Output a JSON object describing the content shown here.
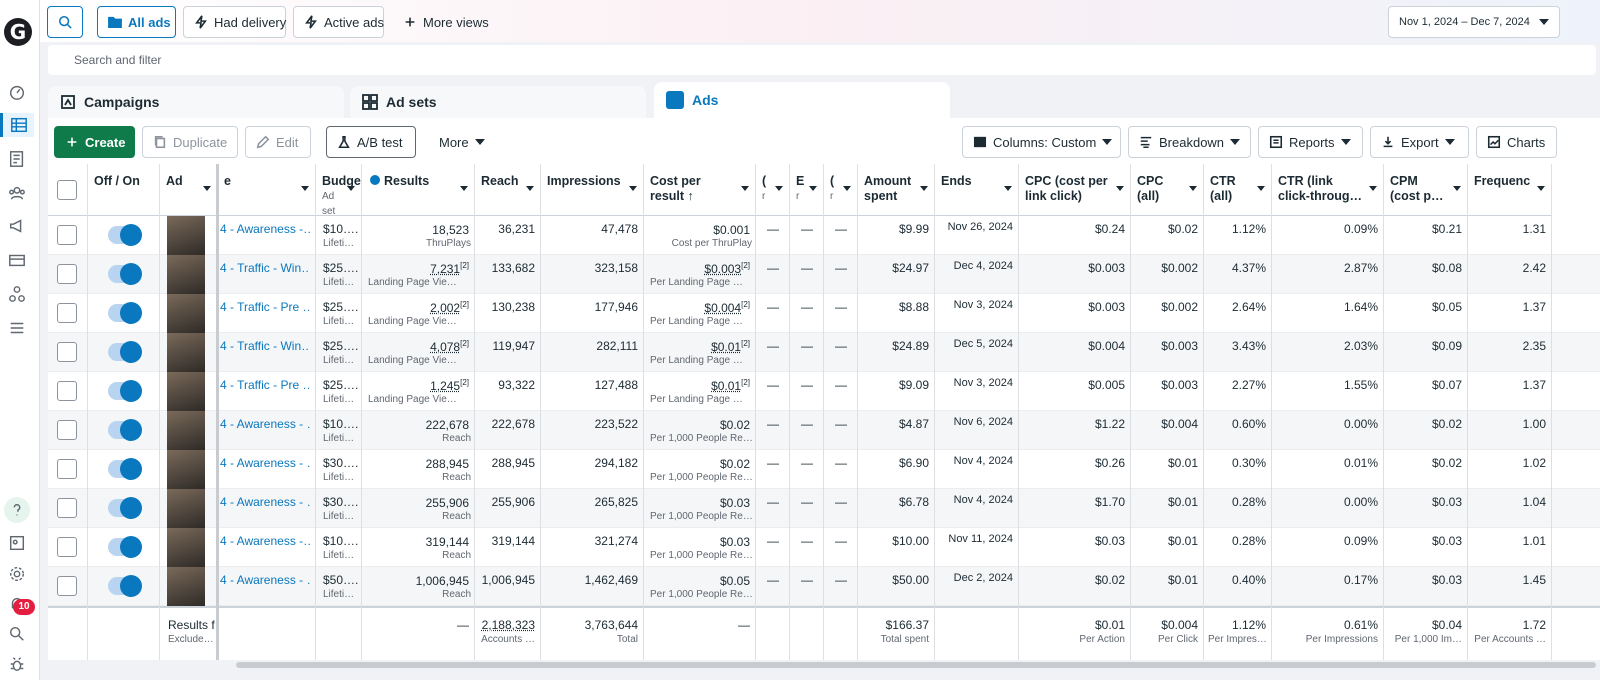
{
  "nav": {
    "logo": "G",
    "notifications": "10",
    "icons": [
      "dashboard-icon",
      "table-icon",
      "report-icon",
      "audience-icon",
      "megaphone-icon",
      "billing-icon",
      "people-icon",
      "menu-icon",
      "help-icon",
      "pages-icon",
      "settings-icon",
      "bell-icon",
      "search-icon",
      "bug-icon"
    ]
  },
  "topbar": {
    "views": [
      {
        "label": "All ads",
        "icon": "folder-icon",
        "selected": true
      },
      {
        "label": "Had delivery",
        "icon": "bolt-icon"
      },
      {
        "label": "Active ads",
        "icon": "bolt-icon"
      },
      {
        "label": "More views",
        "icon": "plus-icon"
      }
    ],
    "date_range": "Nov 1, 2024 – Dec 7, 2024",
    "search_placeholder": "Search and filter"
  },
  "tabs": [
    {
      "label": "Campaigns",
      "icon": "campaign-icon"
    },
    {
      "label": "Ad sets",
      "icon": "grid-icon"
    },
    {
      "label": "Ads",
      "icon": "ad-icon",
      "active": true
    }
  ],
  "toolbar": {
    "create": "Create",
    "duplicate": "Duplicate",
    "edit": "Edit",
    "ab_test": "A/B test",
    "more": "More",
    "columns": "Columns: Custom",
    "breakdown": "Breakdown",
    "reports": "Reports",
    "export": "Export",
    "charts": "Charts"
  },
  "headers": {
    "toggle": "Off / On",
    "ad": "Ad",
    "name": "e",
    "budget": "Budge",
    "budget_sub": "Ad set",
    "results": "Results",
    "reach": "Reach",
    "impressions": "Impressions",
    "cost_per_result": "Cost per result ↑",
    "c1": "(",
    "c1b": "r",
    "c2": "E",
    "c2b": "r",
    "c3": "(",
    "c3b": "r",
    "amount": "Amount spent",
    "ends": "Ends",
    "cpc_link": "CPC (cost per link click)",
    "cpc_all": "CPC (all)",
    "ctr_all": "CTR (all)",
    "ctr_link": "CTR (link click-throug…",
    "cpm": "CPM (cost p…",
    "frequency": "Frequenc"
  },
  "rows": [
    {
      "name": "4 - Awareness -…",
      "budget": "$10….",
      "budget_sub": "Lifeti…",
      "results": "18,523",
      "results_sub": "ThruPlays",
      "results_flag": "",
      "reach": "36,231",
      "impressions": "47,478",
      "cpr": "$0.001",
      "cpr_sub": "Cost per ThruPlay",
      "cpr_flag": "",
      "d1": "—",
      "d2": "—",
      "d3": "—",
      "amount": "$9.99",
      "ends": "Nov 26, 2024",
      "cpc_link": "$0.24",
      "cpc_all": "$0.02",
      "ctr_all": "1.12%",
      "ctr_link": "0.09%",
      "cpm": "$0.21",
      "frequency": "1.31"
    },
    {
      "name": "4 - Traffic - Win…",
      "budget": "$25….",
      "budget_sub": "Lifeti…",
      "results": "7,231",
      "results_sub": "Landing Page Vie…",
      "results_flag": "[2]",
      "reach": "133,682",
      "impressions": "323,158",
      "cpr": "$0.003",
      "cpr_sub": "Per Landing Page …",
      "cpr_flag": "[2]",
      "d1": "—",
      "d2": "—",
      "d3": "—",
      "amount": "$24.97",
      "ends": "Dec 4, 2024",
      "cpc_link": "$0.003",
      "cpc_all": "$0.002",
      "ctr_all": "4.37%",
      "ctr_link": "2.87%",
      "cpm": "$0.08",
      "frequency": "2.42"
    },
    {
      "name": "4 - Traffic - Pre …",
      "budget": "$25….",
      "budget_sub": "Lifeti…",
      "results": "2,002",
      "results_sub": "Landing Page Vie…",
      "results_flag": "[2]",
      "reach": "130,238",
      "impressions": "177,946",
      "cpr": "$0.004",
      "cpr_sub": "Per Landing Page …",
      "cpr_flag": "[2]",
      "d1": "—",
      "d2": "—",
      "d3": "—",
      "amount": "$8.88",
      "ends": "Nov 3, 2024",
      "cpc_link": "$0.003",
      "cpc_all": "$0.002",
      "ctr_all": "2.64%",
      "ctr_link": "1.64%",
      "cpm": "$0.05",
      "frequency": "1.37"
    },
    {
      "name": "4 - Traffic - Win…",
      "budget": "$25….",
      "budget_sub": "Lifeti…",
      "results": "4,078",
      "results_sub": "Landing Page Vie…",
      "results_flag": "[2]",
      "reach": "119,947",
      "impressions": "282,111",
      "cpr": "$0.01",
      "cpr_sub": "Per Landing Page …",
      "cpr_flag": "[2]",
      "d1": "—",
      "d2": "—",
      "d3": "—",
      "amount": "$24.89",
      "ends": "Dec 5, 2024",
      "cpc_link": "$0.004",
      "cpc_all": "$0.003",
      "ctr_all": "3.43%",
      "ctr_link": "2.03%",
      "cpm": "$0.09",
      "frequency": "2.35"
    },
    {
      "name": "4 - Traffic - Pre …",
      "budget": "$25….",
      "budget_sub": "Lifeti…",
      "results": "1,245",
      "results_sub": "Landing Page Vie…",
      "results_flag": "[2]",
      "reach": "93,322",
      "impressions": "127,488",
      "cpr": "$0.01",
      "cpr_sub": "Per Landing Page …",
      "cpr_flag": "[2]",
      "d1": "—",
      "d2": "—",
      "d3": "—",
      "amount": "$9.09",
      "ends": "Nov 3, 2024",
      "cpc_link": "$0.005",
      "cpc_all": "$0.003",
      "ctr_all": "2.27%",
      "ctr_link": "1.55%",
      "cpm": "$0.07",
      "frequency": "1.37"
    },
    {
      "name": "4 - Awareness - …",
      "budget": "$10….",
      "budget_sub": "Lifeti…",
      "results": "222,678",
      "results_sub": "Reach",
      "results_flag": "",
      "reach": "222,678",
      "impressions": "223,522",
      "cpr": "$0.02",
      "cpr_sub": "Per 1,000 People Re…",
      "cpr_flag": "",
      "d1": "—",
      "d2": "—",
      "d3": "—",
      "amount": "$4.87",
      "ends": "Nov 6, 2024",
      "cpc_link": "$1.22",
      "cpc_all": "$0.004",
      "ctr_all": "0.60%",
      "ctr_link": "0.00%",
      "cpm": "$0.02",
      "frequency": "1.00"
    },
    {
      "name": "4 - Awareness - …",
      "budget": "$30….",
      "budget_sub": "Lifeti…",
      "results": "288,945",
      "results_sub": "Reach",
      "results_flag": "",
      "reach": "288,945",
      "impressions": "294,182",
      "cpr": "$0.02",
      "cpr_sub": "Per 1,000 People Re…",
      "cpr_flag": "",
      "d1": "—",
      "d2": "—",
      "d3": "—",
      "amount": "$6.90",
      "ends": "Nov 4, 2024",
      "cpc_link": "$0.26",
      "cpc_all": "$0.01",
      "ctr_all": "0.30%",
      "ctr_link": "0.01%",
      "cpm": "$0.02",
      "frequency": "1.02"
    },
    {
      "name": "4 - Awareness - …",
      "budget": "$30….",
      "budget_sub": "Lifeti…",
      "results": "255,906",
      "results_sub": "Reach",
      "results_flag": "",
      "reach": "255,906",
      "impressions": "265,825",
      "cpr": "$0.03",
      "cpr_sub": "Per 1,000 People Re…",
      "cpr_flag": "",
      "d1": "—",
      "d2": "—",
      "d3": "—",
      "amount": "$6.78",
      "ends": "Nov 4, 2024",
      "cpc_link": "$1.70",
      "cpc_all": "$0.01",
      "ctr_all": "0.28%",
      "ctr_link": "0.00%",
      "cpm": "$0.03",
      "frequency": "1.04"
    },
    {
      "name": "4 - Awareness -…",
      "budget": "$10….",
      "budget_sub": "Lifeti…",
      "results": "319,144",
      "results_sub": "Reach",
      "results_flag": "",
      "reach": "319,144",
      "impressions": "321,274",
      "cpr": "$0.03",
      "cpr_sub": "Per 1,000 People Re…",
      "cpr_flag": "",
      "d1": "—",
      "d2": "—",
      "d3": "—",
      "amount": "$10.00",
      "ends": "Nov 11, 2024",
      "cpc_link": "$0.03",
      "cpc_all": "$0.01",
      "ctr_all": "0.28%",
      "ctr_link": "0.09%",
      "cpm": "$0.03",
      "frequency": "1.01"
    },
    {
      "name": "4 - Awareness - …",
      "budget": "$50….",
      "budget_sub": "Lifeti…",
      "results": "1,006,945",
      "results_sub": "Reach",
      "results_flag": "",
      "reach": "1,006,945",
      "impressions": "1,462,469",
      "cpr": "$0.05",
      "cpr_sub": "Per 1,000 People Re…",
      "cpr_flag": "",
      "d1": "—",
      "d2": "—",
      "d3": "—",
      "amount": "$50.00",
      "ends": "Dec 2, 2024",
      "cpc_link": "$0.02",
      "cpc_all": "$0.01",
      "ctr_all": "0.40%",
      "ctr_link": "0.17%",
      "cpm": "$0.03",
      "frequency": "1.45"
    }
  ],
  "footer": {
    "label": "Results f",
    "label_sub": "Exclude…",
    "results": "—",
    "reach": "2,188,323",
    "reach_sub": "Accounts …",
    "impressions": "3,763,644",
    "impressions_sub": "Total",
    "cpr": "—",
    "amount": "$166.37",
    "amount_sub": "Total spent",
    "cpc_link": "$0.01",
    "cpc_link_sub": "Per Action",
    "cpc_all": "$0.004",
    "cpc_all_sub": "Per Click",
    "ctr_all": "1.12%",
    "ctr_all_sub": "Per Impres…",
    "ctr_link": "0.61%",
    "ctr_link_sub": "Per Impressions",
    "cpm": "$0.04",
    "cpm_sub": "Per 1,000 Im…",
    "frequency": "1.72",
    "frequency_sub": "Per Accounts …"
  },
  "colors": {
    "accent": "#0a78be",
    "create": "#0f7a4a",
    "badge": "#e41e3f"
  }
}
